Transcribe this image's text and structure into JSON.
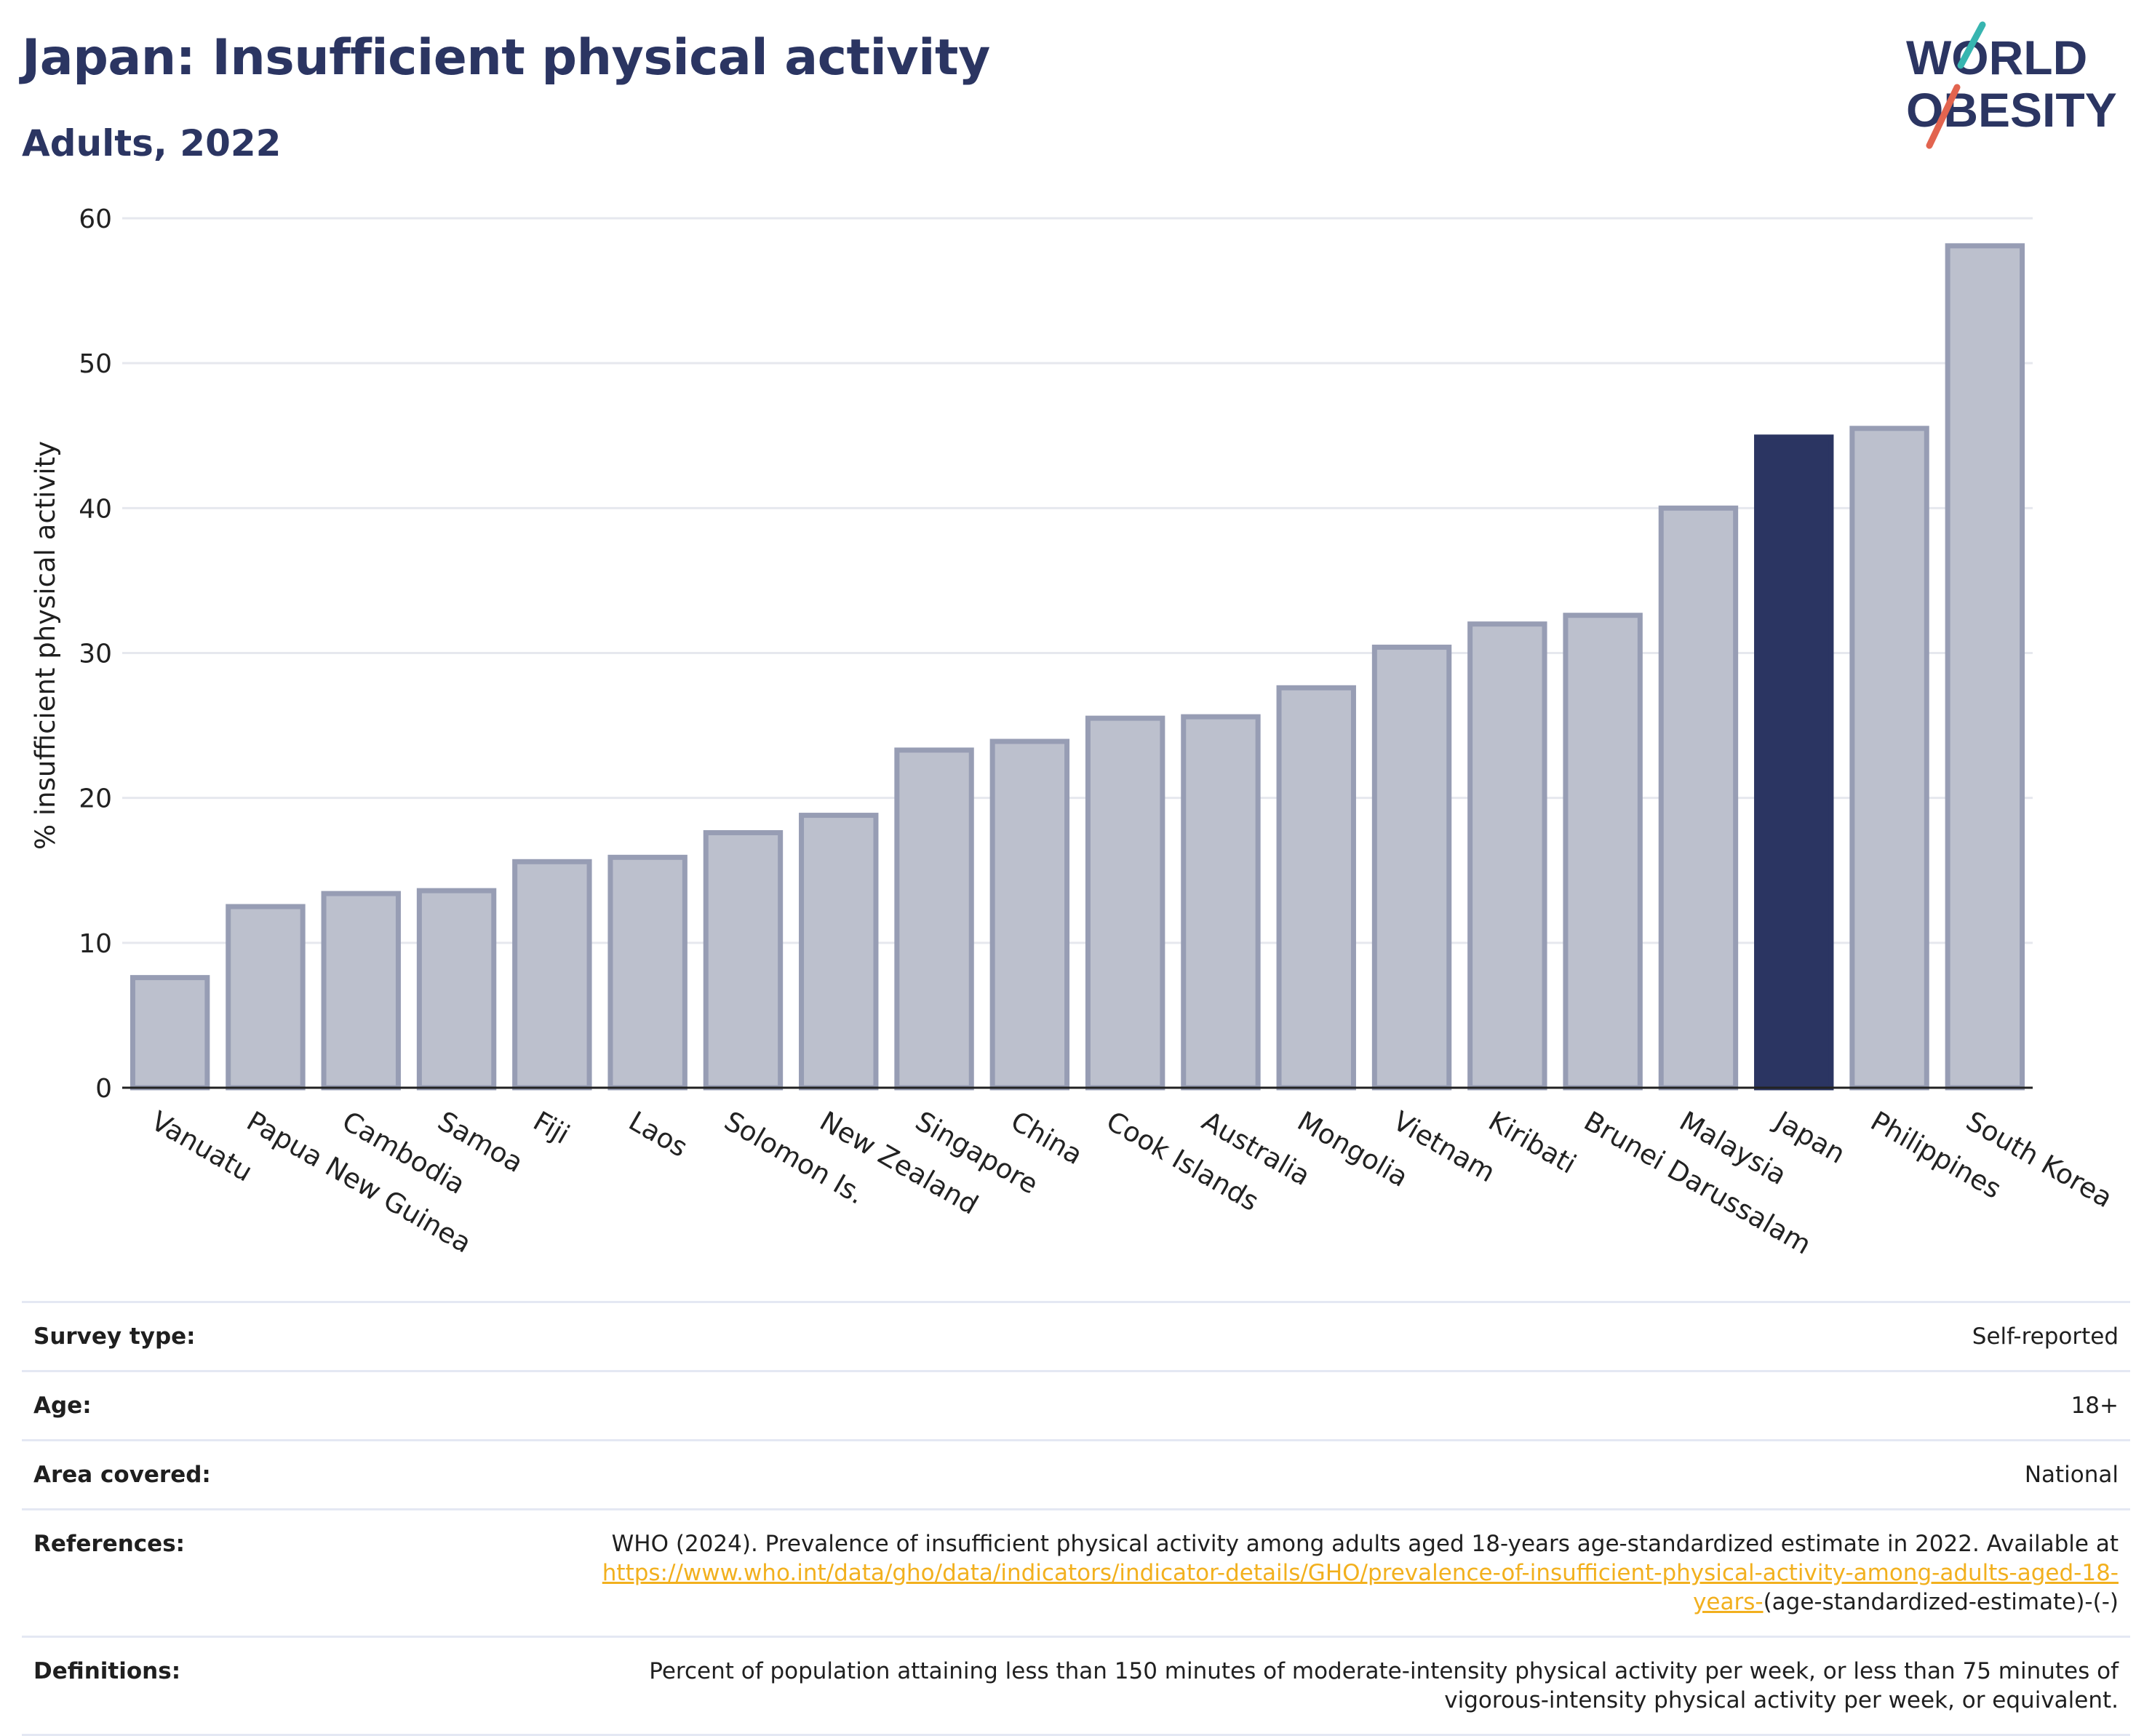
{
  "header": {
    "title": "Japan: Insufficient physical activity",
    "subtitle": "Adults, 2022"
  },
  "logo": {
    "line1": "WORLD",
    "line2": "OBESITY",
    "colors": {
      "text": "#2b3562",
      "slash_teal": "#37b5b0",
      "slash_red": "#e2644f"
    }
  },
  "colors": {
    "highlight": "#2b3562",
    "bar_fill": "#bcc0cd",
    "bar_stroke": "#979db4",
    "grid": "#e6e8ee"
  },
  "chart_data": {
    "type": "bar",
    "title": "Japan: Insufficient physical activity",
    "subtitle": "Adults, 2022",
    "ylabel": "% insufficient physical activity",
    "xlabel": "",
    "ylim": [
      0,
      60
    ],
    "yticks": [
      0,
      10,
      20,
      30,
      40,
      50,
      60
    ],
    "grid": true,
    "highlight": "Japan",
    "categories": [
      "Vanuatu",
      "Papua New Guinea",
      "Cambodia",
      "Samoa",
      "Fiji",
      "Laos",
      "Solomon Is.",
      "New Zealand",
      "Singapore",
      "China",
      "Cook Islands",
      "Australia",
      "Mongolia",
      "Vietnam",
      "Kiribati",
      "Brunei Darussalam",
      "Malaysia",
      "Japan",
      "Philippines",
      "South Korea"
    ],
    "values": [
      7.6,
      12.5,
      13.4,
      13.6,
      15.6,
      15.9,
      17.6,
      18.8,
      23.3,
      23.9,
      25.5,
      25.6,
      27.6,
      30.4,
      32.0,
      32.6,
      40.0,
      44.9,
      45.5,
      58.1
    ]
  },
  "meta": [
    {
      "label": "Survey type:",
      "value": "Self-reported"
    },
    {
      "label": "Age:",
      "value": "18+"
    },
    {
      "label": "Area covered:",
      "value": "National"
    },
    {
      "label": "References:",
      "value": "WHO (2024). Prevalence of insufficient physical activity among adults aged 18-years age-standardized estimate in 2022. Available at",
      "link": "https://www.who.int/data/gho/data/indicators/indicator-details/GHO/prevalence-of-insufficient-physical-activity-among-adults-aged-18-years-",
      "suffix": "(age-standardized-estimate)-(-)"
    },
    {
      "label": "Definitions:",
      "value": "Percent of population attaining less than 150 minutes of moderate-intensity physical activity per week, or less than 75 minutes of vigorous-intensity physical activity per week, or equivalent."
    }
  ]
}
